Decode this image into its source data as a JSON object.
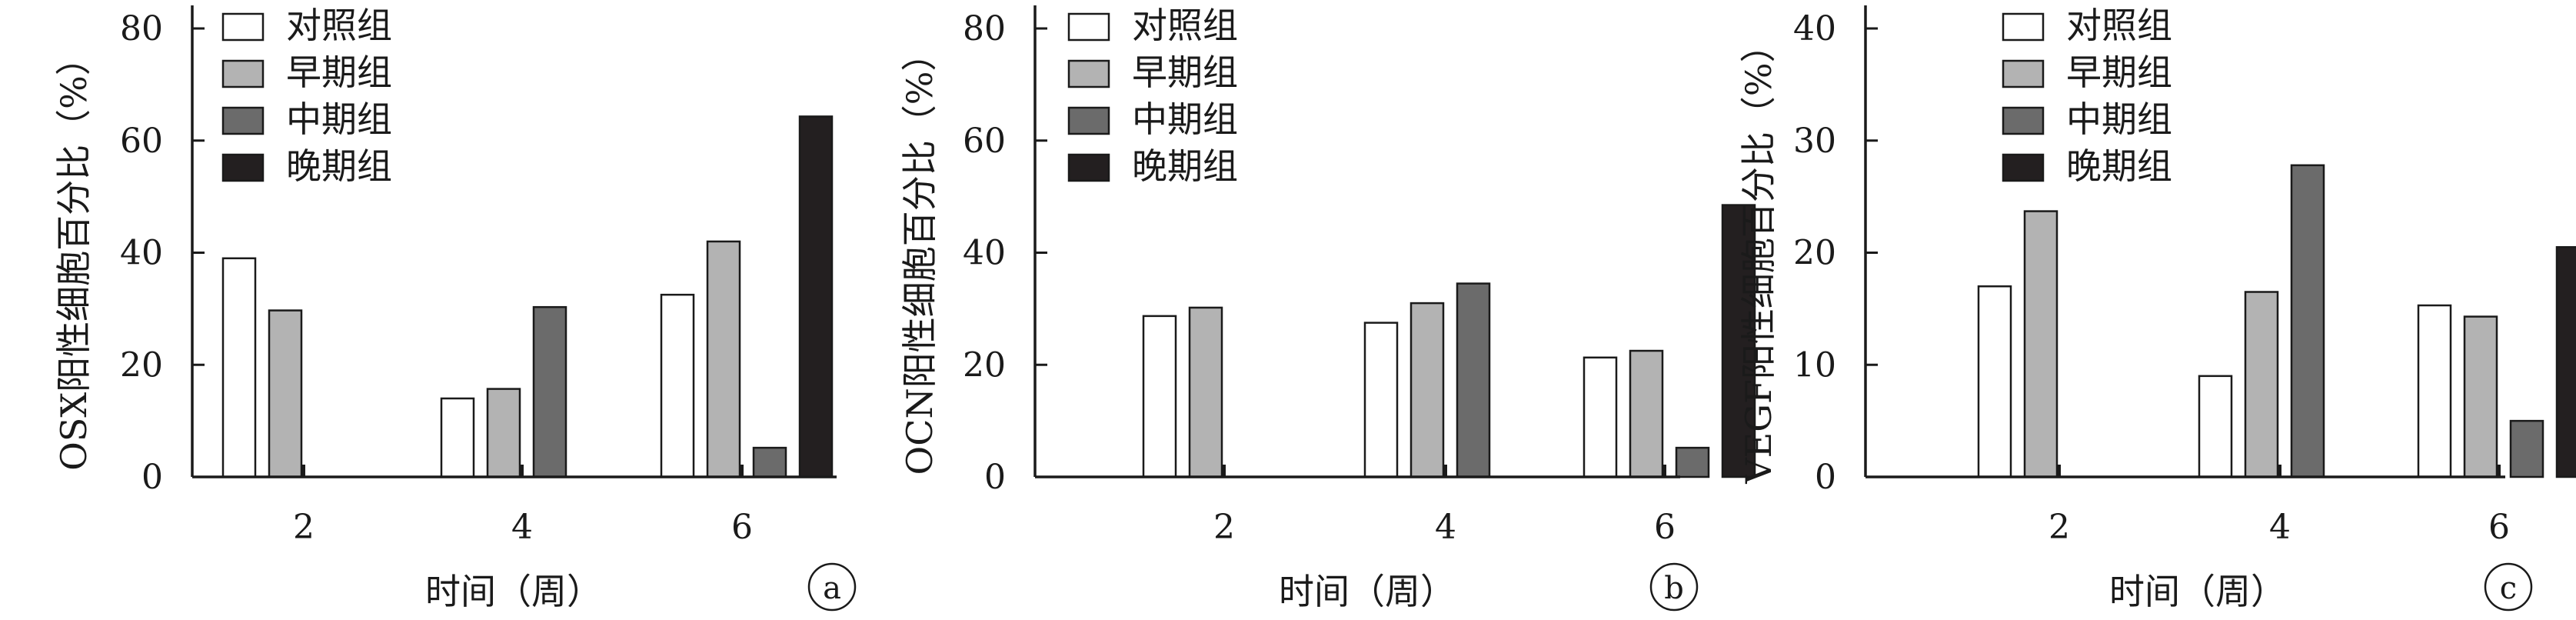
{
  "colors": {
    "对照组": "#ffffff",
    "早期组": "#b3b3b3",
    "中期组": "#6b6b6b",
    "晚期组": "#231f20",
    "axis": "#1a1a1a"
  },
  "chart_data": [
    {
      "type": "bar",
      "panel_label": "a",
      "ylabel": "OSX阳性细胞百分比（%）",
      "xlabel": "时间（周）",
      "categories": [
        "2",
        "4",
        "6"
      ],
      "ylim": [
        0,
        80
      ],
      "yticks": [
        0,
        20,
        40,
        60,
        80
      ],
      "legend_position": "top-left",
      "series": [
        {
          "name": "对照组",
          "values": [
            39,
            14,
            32.5
          ]
        },
        {
          "name": "早期组",
          "values": [
            29.7,
            15.7,
            42
          ]
        },
        {
          "name": "中期组",
          "values": [
            0,
            30.3,
            5.2
          ]
        },
        {
          "name": "晚期组",
          "values": [
            0,
            0,
            64.3
          ]
        }
      ]
    },
    {
      "type": "bar",
      "panel_label": "b",
      "ylabel": "OCN阳性细胞百分比（%）",
      "xlabel": "时间（周）",
      "categories": [
        "2",
        "4",
        "6"
      ],
      "ylim": [
        0,
        80
      ],
      "yticks": [
        0,
        20,
        40,
        60,
        80
      ],
      "legend_position": "top-left",
      "series": [
        {
          "name": "对照组",
          "values": [
            28.7,
            27.5,
            21.3
          ]
        },
        {
          "name": "早期组",
          "values": [
            30.2,
            31,
            22.5
          ]
        },
        {
          "name": "中期组",
          "values": [
            0,
            34.5,
            5.2
          ]
        },
        {
          "name": "晚期组",
          "values": [
            0,
            0,
            48.5
          ]
        }
      ]
    },
    {
      "type": "bar",
      "panel_label": "c",
      "ylabel": "VEGF阳性细胞百分比（%）",
      "xlabel": "时间（周）",
      "categories": [
        "2",
        "4",
        "6"
      ],
      "ylim": [
        0,
        40
      ],
      "yticks": [
        0,
        10,
        20,
        30,
        40
      ],
      "legend_position": "top-left",
      "series": [
        {
          "name": "对照组",
          "values": [
            17,
            9,
            15.3
          ]
        },
        {
          "name": "早期组",
          "values": [
            23.7,
            16.5,
            14.3
          ]
        },
        {
          "name": "中期组",
          "values": [
            0,
            27.8,
            5
          ]
        },
        {
          "name": "晚期组",
          "values": [
            0,
            0,
            20.5
          ]
        }
      ]
    }
  ]
}
